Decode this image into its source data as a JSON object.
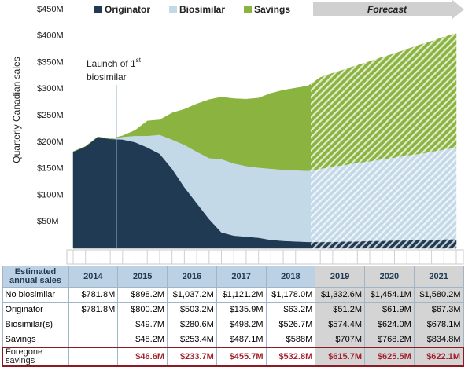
{
  "chart_data": {
    "type": "stacked-area",
    "y_label": "Quarterly Canadian sales",
    "forecast_label": "Forecast",
    "annotation": {
      "text": "Launch of 1",
      "superscript": "st",
      "line2": "biosimilar"
    },
    "categories": [
      null,
      null,
      null,
      null,
      null,
      null,
      null,
      null,
      null,
      null,
      null,
      null,
      null,
      null,
      null,
      null,
      null,
      null,
      null,
      null,
      null,
      null,
      null,
      null,
      null,
      null,
      null,
      null,
      null,
      null,
      null,
      null
    ],
    "series": [
      {
        "name": "Originator",
        "color": "#1f3a52",
        "values": [
          182,
          192,
          210,
          206,
          205,
          200,
          190,
          178,
          150,
          115,
          85,
          55,
          30,
          24,
          22,
          20,
          16,
          14,
          13,
          12,
          12,
          12,
          13,
          13,
          14,
          14,
          15,
          15,
          16,
          16,
          17,
          17
        ]
      },
      {
        "name": "Biosimilar",
        "color": "#c3d9e8",
        "values": [
          0,
          0,
          0,
          0,
          5,
          12,
          22,
          36,
          55,
          80,
          97,
          115,
          138,
          136,
          133,
          132,
          134,
          134,
          134,
          134,
          138,
          142,
          144,
          148,
          150,
          154,
          156,
          160,
          162,
          166,
          169,
          173
        ]
      },
      {
        "name": "Savings",
        "color": "#8ab33f",
        "values": [
          0,
          0,
          0,
          0,
          2,
          10,
          28,
          28,
          50,
          67,
          90,
          110,
          117,
          122,
          126,
          131,
          142,
          150,
          155,
          160,
          172,
          176,
          180,
          184,
          188,
          192,
          196,
          200,
          205,
          208,
          212,
          215
        ]
      }
    ],
    "ylim": [
      0,
      450
    ],
    "yticks": [
      {
        "value": 50,
        "label": "$50M"
      },
      {
        "value": 100,
        "label": "$100M"
      },
      {
        "value": 150,
        "label": "$150M"
      },
      {
        "value": 200,
        "label": "$200M"
      },
      {
        "value": 250,
        "label": "$250M"
      },
      {
        "value": 300,
        "label": "$300M"
      },
      {
        "value": 350,
        "label": "$350M"
      },
      {
        "value": 400,
        "label": "$400M"
      },
      {
        "value": 450,
        "label": "$450M"
      }
    ]
  },
  "table": {
    "header": "Estimated annual sales",
    "columns": [
      "2014",
      "2015",
      "2016",
      "2017",
      "2018",
      "2019",
      "2020",
      "2021"
    ],
    "rows": [
      {
        "label": "No biosimilar",
        "cells": [
          "$781.8M",
          "$898.2M",
          "$1,037.2M",
          "$1,121.2M",
          "$1,178.0M",
          "$1,332.6M",
          "$1,454.1M",
          "$1,580.2M"
        ]
      },
      {
        "label": "Originator",
        "cells": [
          "$781.8M",
          "$800.2M",
          "$503.2M",
          "$135.9M",
          "$63.2M",
          "$51.2M",
          "$61.9M",
          "$67.3M"
        ]
      },
      {
        "label": "Biosimilar(s)",
        "cells": [
          null,
          "$49.7M",
          "$280.6M",
          "$498.2M",
          "$526.7M",
          "$574.4M",
          "$624.0M",
          "$678.1M"
        ]
      },
      {
        "label": "Savings",
        "cells": [
          null,
          "$48.2M",
          "$253.4M",
          "$487.1M",
          "$588M",
          "$707M",
          "$768.2M",
          "$834.8M"
        ]
      },
      {
        "label": "Foregone savings",
        "cells": [
          null,
          "$46.6M",
          "$233.7M",
          "$455.7M",
          "$532.8M",
          "$615.7M",
          "$625.5M",
          "$622.1M"
        ]
      }
    ]
  }
}
